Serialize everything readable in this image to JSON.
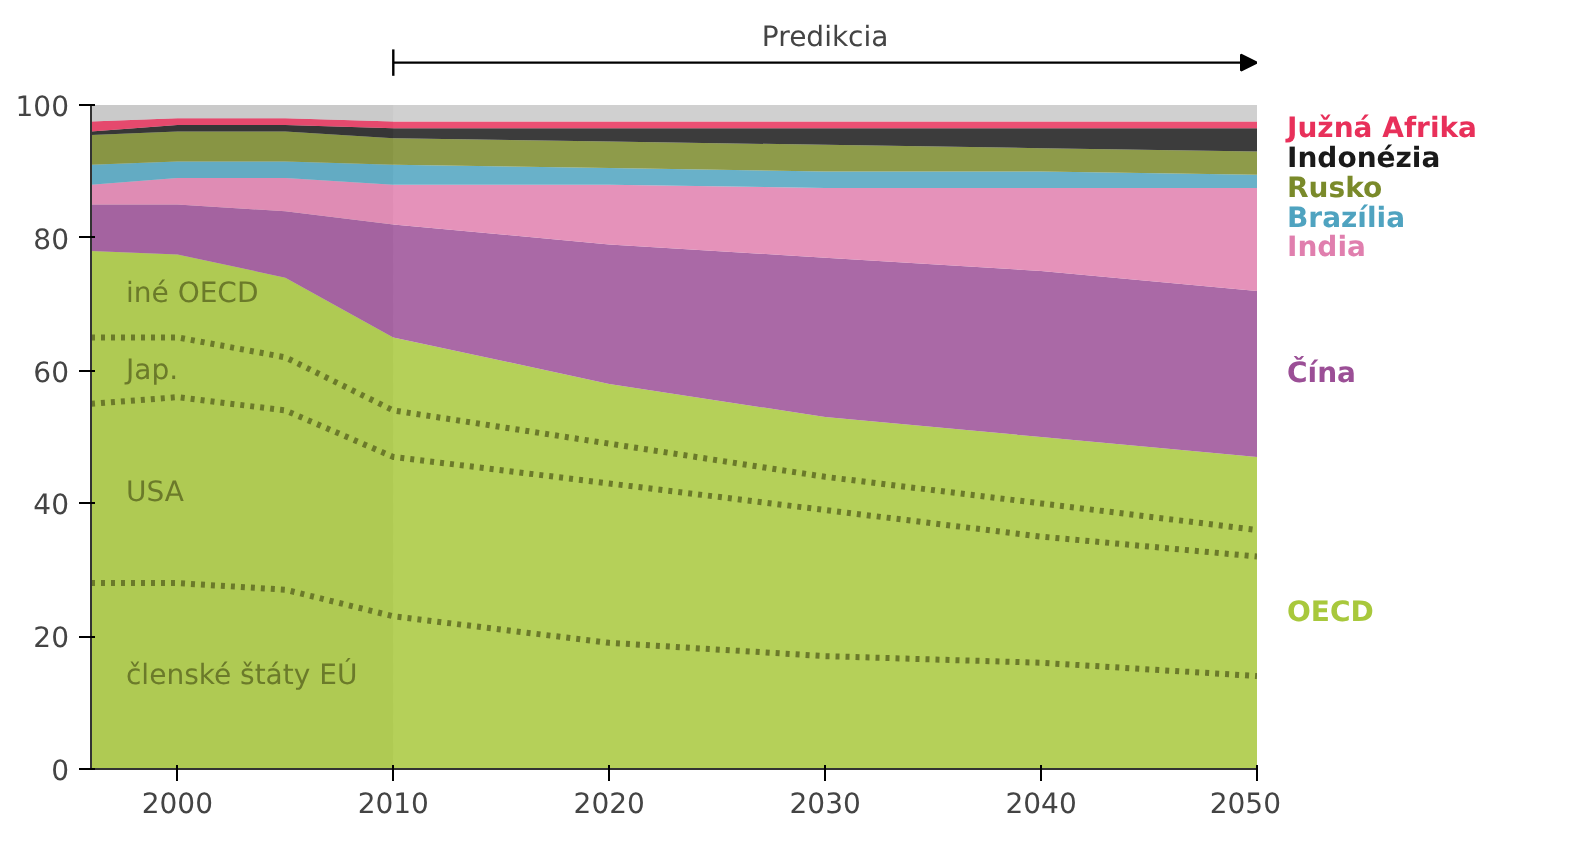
{
  "chart_data": {
    "type": "area",
    "stacked": true,
    "legend": false,
    "x": [
      1996,
      2000,
      2005,
      2010,
      2020,
      2030,
      2040,
      2050
    ],
    "xlim": [
      1996,
      2050
    ],
    "xticks": [
      2000,
      2010,
      2020,
      2030,
      2040,
      2050
    ],
    "ylim": [
      0,
      100
    ],
    "yticks": [
      0,
      20,
      40,
      60,
      80,
      100
    ],
    "series": [
      {
        "name": "OECD",
        "color": "#a8c83c",
        "values": [
          78,
          77.5,
          74,
          65,
          58,
          53,
          50,
          47
        ]
      },
      {
        "name": "Čína",
        "color": "#9b4f96",
        "values": [
          7,
          7.5,
          10,
          17,
          21,
          24,
          25,
          25
        ]
      },
      {
        "name": "India",
        "color": "#e07fae",
        "values": [
          3,
          4,
          5,
          6,
          9,
          10.5,
          12.5,
          15.5
        ]
      },
      {
        "name": "Brazília",
        "color": "#4fa3c0",
        "values": [
          3,
          2.5,
          2.5,
          3,
          2.5,
          2.5,
          2.5,
          2
        ]
      },
      {
        "name": "Rusko",
        "color": "#7a8a2a",
        "values": [
          4.5,
          4.5,
          4.5,
          4,
          4,
          4,
          3.5,
          3.5
        ]
      },
      {
        "name": "Indonézia",
        "color": "#1a1a1a",
        "values": [
          0.5,
          1,
          1,
          1.5,
          2,
          2.5,
          3,
          3.5
        ]
      },
      {
        "name": "Južná Afrika",
        "color": "#e8305a",
        "values": [
          1.5,
          1,
          1,
          1,
          1,
          1,
          1,
          1
        ]
      },
      {
        "color": "#c8c8c8",
        "values": [
          2.5,
          2,
          2,
          2.5,
          2.5,
          2.5,
          2.5,
          2.5
        ]
      },
      {
        "type": "line",
        "color": "#6b7a2a",
        "line_style": "dotted",
        "values": [
          65,
          65,
          62,
          54,
          49,
          44,
          40,
          36
        ]
      },
      {
        "type": "line",
        "color": "#6b7a2a",
        "line_style": "dotted",
        "values": [
          55,
          56,
          54,
          47,
          43,
          39,
          35,
          32
        ]
      },
      {
        "type": "line",
        "color": "#6b7a2a",
        "line_style": "dotted",
        "values": [
          28,
          28,
          27,
          23,
          19,
          17,
          16,
          14
        ]
      }
    ],
    "bands": [
      {
        "axis": "x",
        "from": 2010,
        "to": 2050,
        "label": "Predikcia",
        "color": "#ffffff"
      }
    ],
    "annotations": [
      "iné OECD",
      "Jap.",
      "USA",
      "členské štáty EÚ"
    ]
  }
}
